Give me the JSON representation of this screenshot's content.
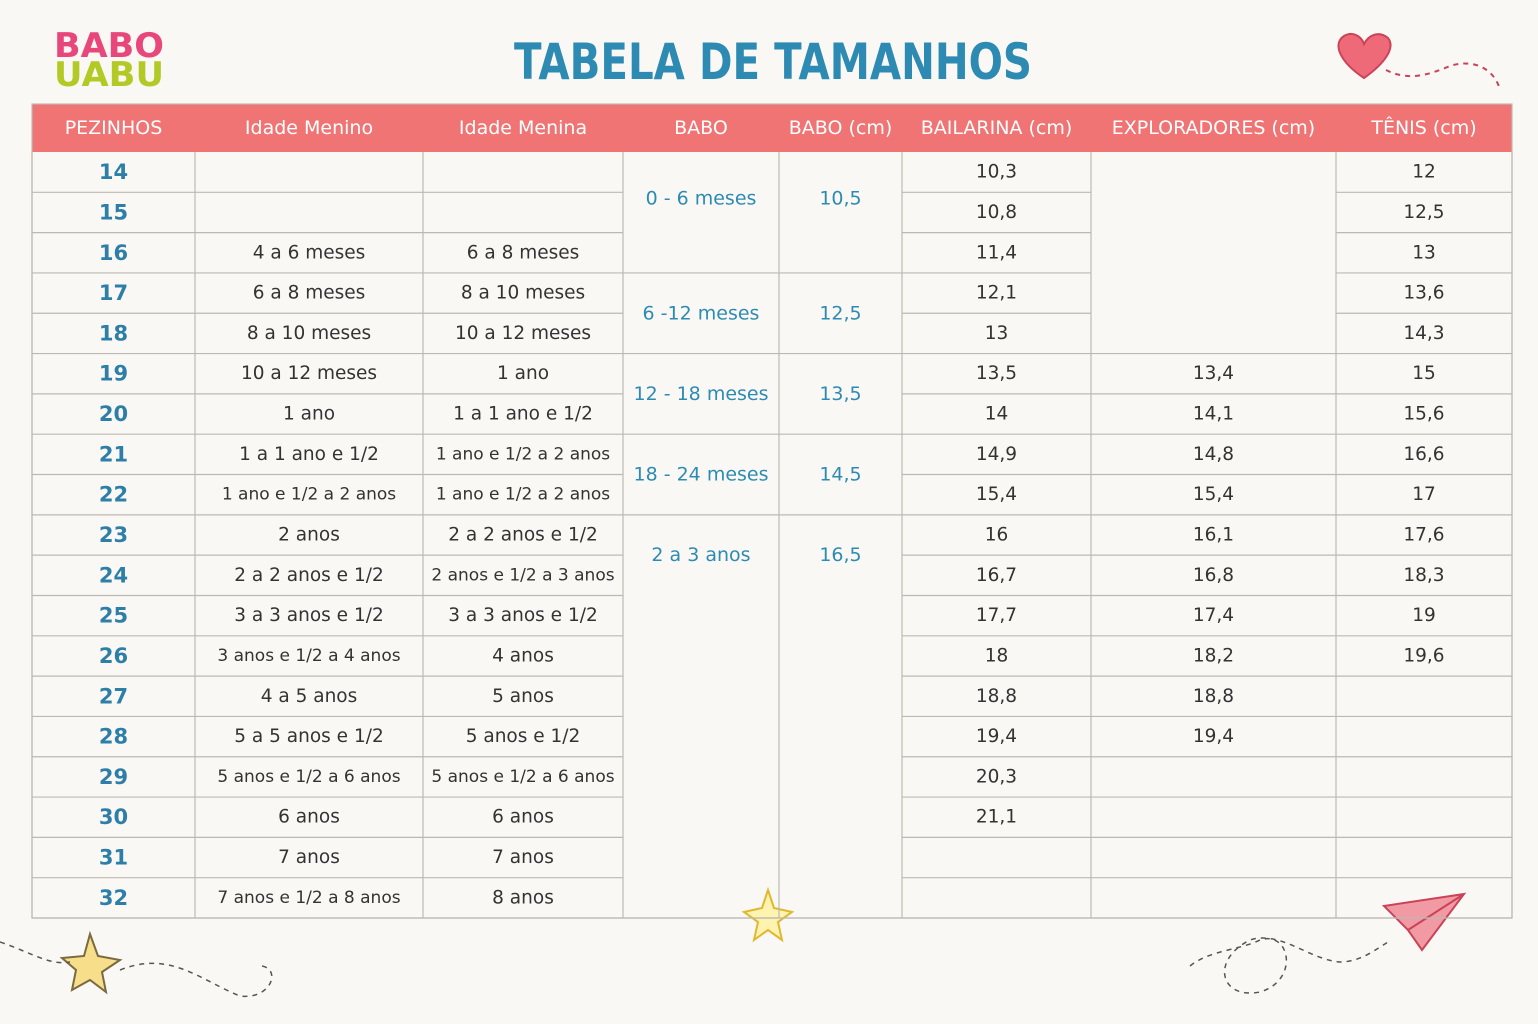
{
  "header": {
    "logo": [
      "BABO",
      "UABU"
    ],
    "title": "TABELA DE TAMANHOS"
  },
  "table": {
    "columns": [
      "PEZINHOS",
      "Idade Menino",
      "Idade Menina",
      "BABO",
      "BABO (cm)",
      "BAILARINA (cm)",
      "EXPLORADORES (cm)",
      "TÊNIS (cm)"
    ],
    "rows": [
      {
        "pezinhos": 14,
        "babo": "0 - 6 meses",
        "babo_cm": "10,5",
        "bailarina": "10,3",
        "tenis": "12"
      },
      {
        "pezinhos": 15,
        "bailarina": "10,8",
        "tenis": "12,5"
      },
      {
        "pezinhos": 16,
        "menino": "4 a 6 meses",
        "menina": "6 a 8 meses",
        "bailarina": "11,4",
        "tenis": "13"
      },
      {
        "pezinhos": 17,
        "menino": "6 a 8 meses",
        "menina": "8 a 10 meses",
        "babo": "6 -12 meses",
        "babo_cm": "12,5",
        "bailarina": "12,1",
        "tenis": "13,6"
      },
      {
        "pezinhos": 18,
        "menino": "8 a 10 meses",
        "menina": "10 a 12 meses",
        "bailarina": "13",
        "tenis": "14,3"
      },
      {
        "pezinhos": 19,
        "menino": "10 a 12 meses",
        "menina": "1 ano",
        "babo": "12 - 18 meses",
        "babo_cm": "13,5",
        "bailarina": "13,5",
        "exploradores": "13,4",
        "tenis": "15"
      },
      {
        "pezinhos": 20,
        "menino": "1 ano",
        "menina": "1 a 1 ano e 1/2",
        "bailarina": "14",
        "exploradores": "14,1",
        "tenis": "15,6"
      },
      {
        "pezinhos": 21,
        "menino": "1 a 1 ano e 1/2",
        "menina": "1 ano e 1/2 a 2 anos",
        "babo": "18 - 24 meses",
        "babo_cm": "14,5",
        "bailarina": "14,9",
        "exploradores": "14,8",
        "tenis": "16,6"
      },
      {
        "pezinhos": 22,
        "menino": "1 ano e 1/2 a 2 anos",
        "menina": "1 ano e 1/2 a 2 anos",
        "bailarina": "15,4",
        "exploradores": "15,4",
        "tenis": "17"
      },
      {
        "pezinhos": 23,
        "menino": "2 anos",
        "menina": "2 a 2 anos e 1/2",
        "babo": "2 a 3 anos",
        "babo_cm": "16,5",
        "bailarina": "16",
        "exploradores": "16,1",
        "tenis": "17,6"
      },
      {
        "pezinhos": 24,
        "menino": "2 a 2 anos e 1/2",
        "menina": "2 anos e 1/2 a 3 anos",
        "bailarina": "16,7",
        "exploradores": "16,8",
        "tenis": "18,3"
      },
      {
        "pezinhos": 25,
        "menino": "3 a 3 anos e 1/2",
        "menina": "3 a 3 anos e 1/2",
        "bailarina": "17,7",
        "exploradores": "17,4",
        "tenis": "19"
      },
      {
        "pezinhos": 26,
        "menino": "3 anos e 1/2 a 4 anos",
        "menina": "4 anos",
        "bailarina": "18",
        "exploradores": "18,2",
        "tenis": "19,6"
      },
      {
        "pezinhos": 27,
        "menino": "4 a 5 anos",
        "menina": "5 anos",
        "bailarina": "18,8",
        "exploradores": "18,8"
      },
      {
        "pezinhos": 28,
        "menino": "5 a 5 anos e 1/2",
        "menina": "5 anos e 1/2",
        "bailarina": "19,4",
        "exploradores": "19,4"
      },
      {
        "pezinhos": 29,
        "menino": "5 anos e 1/2 a 6 anos",
        "menina": "5 anos e 1/2 a 6 anos",
        "bailarina": "20,3"
      },
      {
        "pezinhos": 30,
        "menino": "6 anos",
        "menina": "6 anos",
        "bailarina": "21,1"
      },
      {
        "pezinhos": 31,
        "menino": "7 anos",
        "menina": "7 anos"
      },
      {
        "pezinhos": 32,
        "menino": "7 anos e 1/2 a 8 anos",
        "menina": "8 anos"
      }
    ]
  }
}
